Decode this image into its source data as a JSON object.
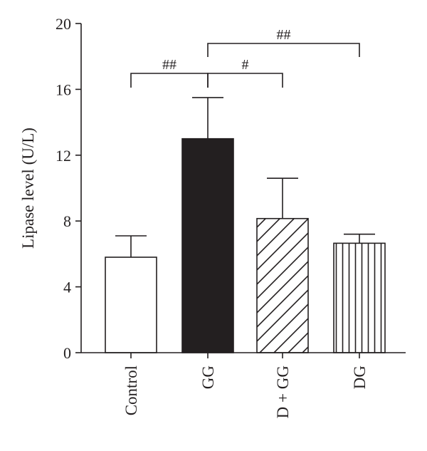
{
  "chart_data": {
    "type": "bar",
    "ylabel": "Lipase level (U/L)",
    "xlabel": "",
    "ylim": [
      0,
      20
    ],
    "yticks": [
      "0",
      "4",
      "8",
      "12",
      "16",
      "20"
    ],
    "categories": [
      "Control",
      "GG",
      "D + GG",
      "DG"
    ],
    "values": [
      5.8,
      13.0,
      8.15,
      6.65
    ],
    "errors": [
      1.3,
      2.5,
      2.45,
      0.55
    ],
    "fills": [
      "white",
      "black",
      "diagonal-hatch",
      "vertical-hatch"
    ],
    "significance": [
      {
        "from": "Control",
        "to": "GG",
        "label": "##"
      },
      {
        "from": "GG",
        "to": "D + GG",
        "label": "#"
      },
      {
        "from": "GG",
        "to": "DG",
        "label": "##"
      }
    ],
    "colors": {
      "ink": "#231f20",
      "dark_bar": "#231f20",
      "background": "#ffffff"
    }
  }
}
